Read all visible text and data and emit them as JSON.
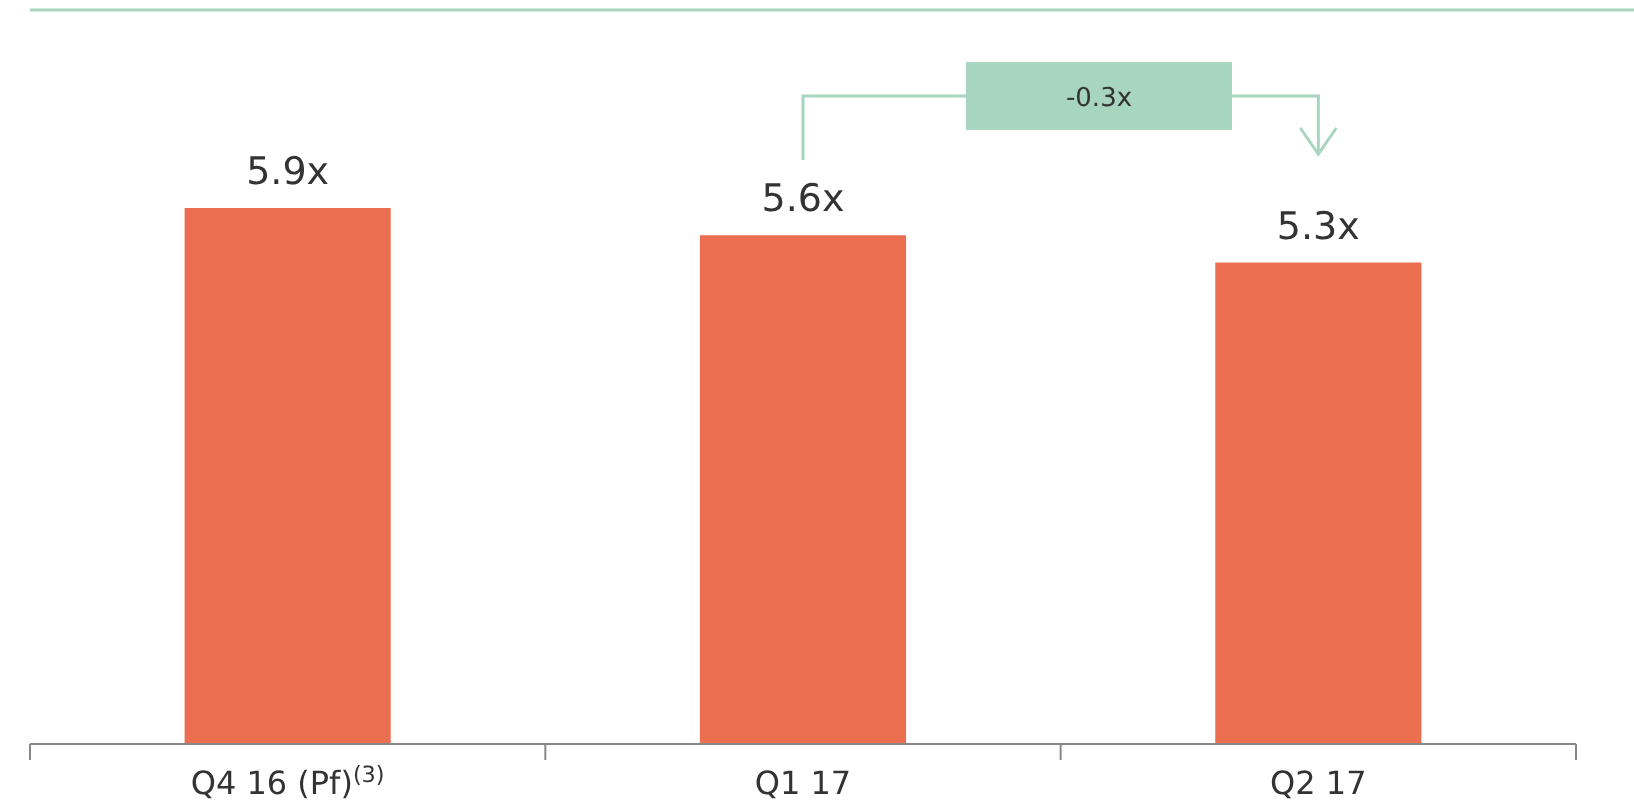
{
  "chart_data": {
    "type": "bar",
    "categories": [
      "Q4 16 (Pf)$^{(3)}$",
      "Q1 17",
      "Q2 17"
    ],
    "values": [
      5.9,
      5.6,
      5.3
    ],
    "value_labels": [
      "5.9x",
      "5.6x",
      "5.3x"
    ],
    "color": "#eb6e50",
    "annotations": [
      "-0.3x"
    ]
  }
}
